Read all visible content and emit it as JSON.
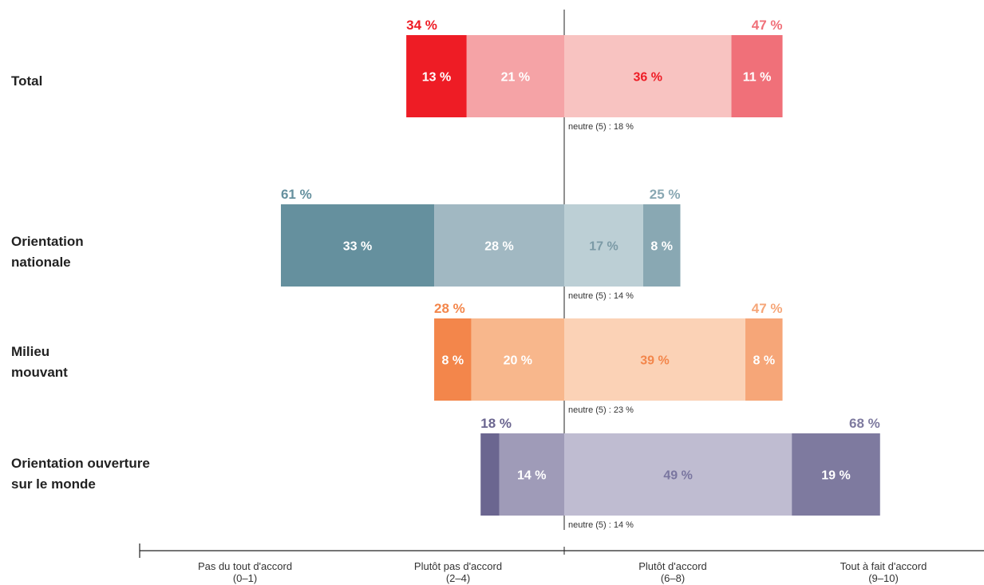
{
  "chart_data": {
    "type": "bar",
    "orientation": "horizontal-diverging",
    "title": "",
    "xlabel": "",
    "ylabel": "",
    "axis_categories": [
      {
        "name": "Pas du tout d'accord",
        "range": "(0–1)"
      },
      {
        "name": "Plutôt pas d'accord",
        "range": "(2–4)"
      },
      {
        "name": "Plutôt d'accord",
        "range": "(6–8)"
      },
      {
        "name": "Tout à fait d'accord",
        "range": "(9–10)"
      }
    ],
    "groups": [
      {
        "label_lines": [
          "Total"
        ],
        "neg_total": "34 %",
        "pos_total": "47 %",
        "neutral": "neutre (5) : 18 %",
        "segments": [
          {
            "value": 13,
            "label": "13 %",
            "color": "#ee1c25",
            "text_color": "#ffffff"
          },
          {
            "value": 21,
            "label": "21 %",
            "color": "#f5a3a6",
            "text_color": "#ffffff"
          },
          {
            "value": 36,
            "label": "36 %",
            "color": "#f8c3c1",
            "text_color": "#ee1c25"
          },
          {
            "value": 11,
            "label": "11 %",
            "color": "#f07079",
            "text_color": "#ffffff"
          }
        ],
        "neg_color": "#ee1c25",
        "pos_color": "#f07079"
      },
      {
        "label_lines": [
          "Orientation",
          "nationale"
        ],
        "neg_total": "61 %",
        "pos_total": "25 %",
        "neutral": "neutre (5) : 14 %",
        "segments": [
          {
            "value": 33,
            "label": "33 %",
            "color": "#65909e",
            "text_color": "#ffffff"
          },
          {
            "value": 28,
            "label": "28 %",
            "color": "#a1b8c2",
            "text_color": "#ffffff"
          },
          {
            "value": 17,
            "label": "17 %",
            "color": "#bccfd5",
            "text_color": "#7b9aa6"
          },
          {
            "value": 8,
            "label": "8 %",
            "color": "#89a8b3",
            "text_color": "#ffffff"
          }
        ],
        "neg_color": "#65909e",
        "pos_color": "#89a8b3"
      },
      {
        "label_lines": [
          "Milieu",
          "mouvant"
        ],
        "neg_total": "28 %",
        "pos_total": "47 %",
        "neutral": "neutre (5) : 23 %",
        "segments": [
          {
            "value": 8,
            "label": "8 %",
            "color": "#f3864b",
            "text_color": "#ffffff"
          },
          {
            "value": 20,
            "label": "20 %",
            "color": "#f8b78c",
            "text_color": "#ffffff"
          },
          {
            "value": 39,
            "label": "39 %",
            "color": "#fbd2b6",
            "text_color": "#f3864b"
          },
          {
            "value": 8,
            "label": "8 %",
            "color": "#f6a678",
            "text_color": "#ffffff"
          }
        ],
        "neg_color": "#f3864b",
        "pos_color": "#f6a678"
      },
      {
        "label_lines": [
          "Orientation ouverture",
          "sur le monde"
        ],
        "neg_total": "18 %",
        "pos_total": "68 %",
        "neutral": "neutre (5) : 14 %",
        "segments": [
          {
            "value": 4,
            "label": "",
            "color": "#6b6690",
            "text_color": "#ffffff"
          },
          {
            "value": 14,
            "label": "14 %",
            "color": "#9f9bb8",
            "text_color": "#ffffff"
          },
          {
            "value": 49,
            "label": "49 %",
            "color": "#bfbcd1",
            "text_color": "#7a76a0"
          },
          {
            "value": 19,
            "label": "19 %",
            "color": "#7e7a9f",
            "text_color": "#ffffff"
          }
        ],
        "neg_color": "#6b6690",
        "pos_color": "#7e7a9f"
      }
    ],
    "grid": false,
    "legend": "none"
  }
}
